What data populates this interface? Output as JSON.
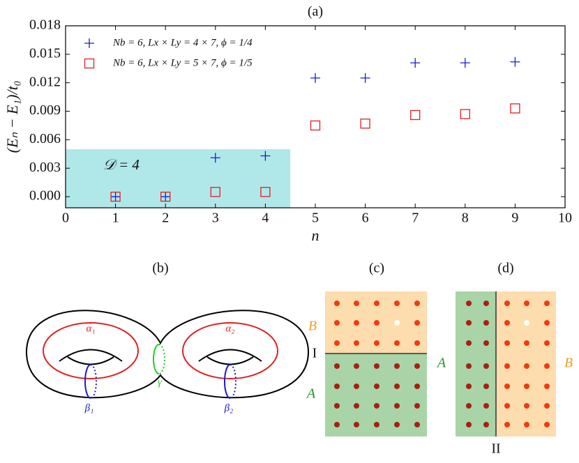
{
  "chart_data": {
    "type": "scatter",
    "title": "(a)",
    "x_label": "n",
    "y_label": "(Eₙ − E₁)/t₀",
    "x": [
      1,
      2,
      3,
      4,
      5,
      6,
      7,
      8,
      9
    ],
    "series": [
      {
        "name": "Nb = 6, Lx × Ly = 4 × 7, ϕ = 1/4",
        "color": "#1a1adb",
        "marker": "plus",
        "values": [
          0,
          0,
          0.0041,
          0.0043,
          0.0125,
          0.0125,
          0.0141,
          0.0141,
          0.0142
        ]
      },
      {
        "name": "Nb = 6, Lx × Ly = 5 × 7, ϕ = 1/5",
        "color": "#e02020",
        "marker": "square",
        "values": [
          0,
          0,
          0.0005,
          0.0005,
          0.0075,
          0.0077,
          0.0086,
          0.0087,
          0.0093
        ]
      }
    ],
    "xlim": [
      0,
      10
    ],
    "xticks": [
      0,
      1,
      2,
      3,
      4,
      5,
      6,
      7,
      8,
      9,
      10
    ],
    "ylim": [
      -0.00117,
      0.018
    ],
    "yticks": [
      {
        "value": 0,
        "label": "0.000"
      },
      0.003,
      0.006,
      0.009,
      0.012,
      0.015,
      0.018
    ],
    "legend": "upper left",
    "shade": {
      "x": [
        0,
        4.5
      ],
      "y_top": 0.005,
      "color": "#b0e8ea",
      "label": "𝒟 = 4"
    }
  },
  "diagrams": {
    "b": {
      "label": "(b)",
      "alpha1": "α₁",
      "alpha2": "α₂",
      "beta1": "β₁",
      "beta2": "β₂",
      "gamma": "γ"
    },
    "c": {
      "label": "(c)",
      "top": "B",
      "cut": "I",
      "bottom": "A"
    },
    "d": {
      "label": "(d)",
      "left": "A",
      "right": "B",
      "cut": "II"
    }
  }
}
